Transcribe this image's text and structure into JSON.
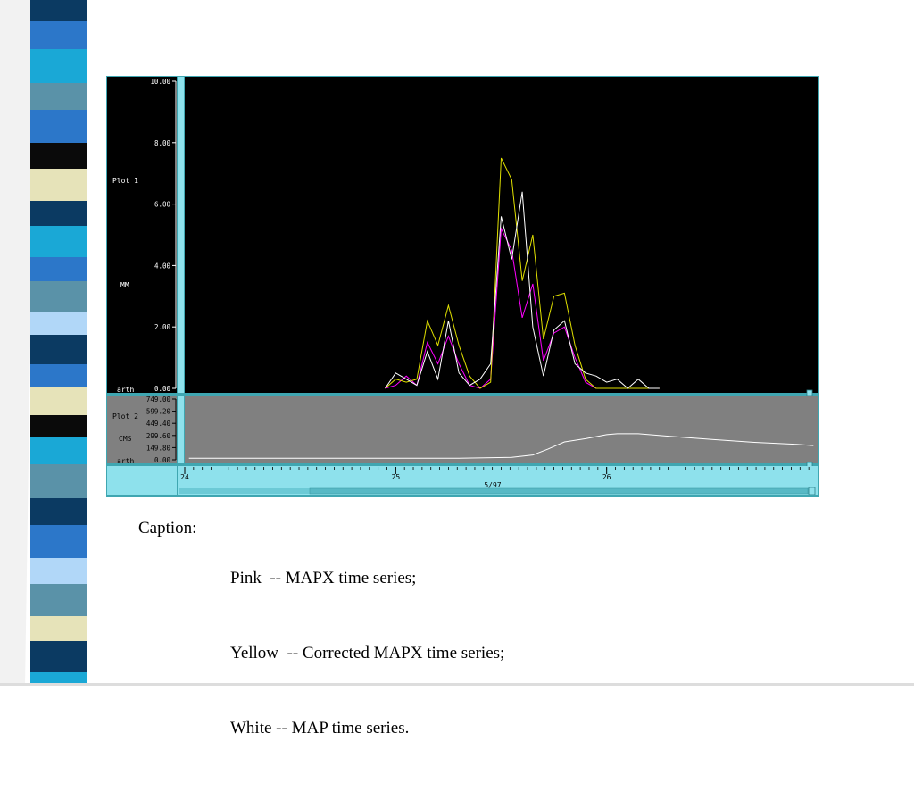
{
  "chart_data": [
    {
      "type": "line",
      "panel_label": "Plot 1",
      "ylabel": "MM",
      "baseline_label": "arth",
      "ylim": [
        0,
        10
      ],
      "yticks": [
        "10.00",
        "8.00",
        "6.00",
        "4.00",
        "2.00",
        "0.00"
      ],
      "ytick_values": [
        10,
        8,
        6,
        4,
        2,
        0
      ],
      "xlim": [
        24,
        27
      ],
      "grid": false,
      "series": [
        {
          "name": "",
          "color": "#ff00ff",
          "x": [
            24.95,
            25.0,
            25.05,
            25.1,
            25.15,
            25.2,
            25.25,
            25.3,
            25.35,
            25.4,
            25.45,
            25.5,
            25.55,
            25.6,
            25.65,
            25.7,
            25.75,
            25.8,
            25.85,
            25.9,
            25.95,
            26.0,
            26.05,
            26.1,
            26.15,
            26.2,
            26.25
          ],
          "y": [
            0,
            0.1,
            0.4,
            0.1,
            1.5,
            0.8,
            1.7,
            0.8,
            0.1,
            0,
            0.3,
            5.2,
            4.5,
            2.3,
            3.4,
            0.9,
            1.8,
            2.0,
            1.0,
            0.2,
            0,
            0,
            0,
            0,
            0,
            0,
            0
          ]
        },
        {
          "name": "",
          "color": "#e0e000",
          "x": [
            24.95,
            25.0,
            25.05,
            25.1,
            25.15,
            25.2,
            25.25,
            25.3,
            25.35,
            25.4,
            25.45,
            25.5,
            25.55,
            25.6,
            25.65,
            25.7,
            25.75,
            25.8,
            25.85,
            25.9,
            25.95,
            26.0,
            26.05,
            26.1,
            26.15,
            26.2,
            26.25
          ],
          "y": [
            0,
            0.3,
            0.2,
            0.3,
            2.2,
            1.4,
            2.7,
            1.4,
            0.4,
            0,
            0.2,
            7.5,
            6.8,
            3.5,
            5.0,
            1.6,
            3.0,
            3.1,
            1.4,
            0.3,
            0,
            0,
            0,
            0,
            0,
            0,
            0
          ]
        },
        {
          "name": "",
          "color": "#ffffff",
          "x": [
            24.95,
            25.0,
            25.05,
            25.1,
            25.15,
            25.2,
            25.25,
            25.3,
            25.35,
            25.4,
            25.45,
            25.5,
            25.55,
            25.6,
            25.65,
            25.7,
            25.75,
            25.8,
            25.85,
            25.9,
            25.95,
            26.0,
            26.05,
            26.1,
            26.15,
            26.2,
            26.25
          ],
          "y": [
            0,
            0.5,
            0.3,
            0.1,
            1.2,
            0.3,
            2.2,
            0.5,
            0.1,
            0.3,
            0.8,
            5.6,
            4.2,
            6.4,
            2.0,
            0.4,
            1.9,
            2.2,
            0.8,
            0.5,
            0.4,
            0.2,
            0.3,
            0,
            0.3,
            0,
            0
          ]
        }
      ]
    },
    {
      "type": "line",
      "panel_label": "Plot 2",
      "ylabel": "CMS",
      "baseline_label": "arth",
      "ylim": [
        0,
        749
      ],
      "yticks": [
        "749.00",
        "599.20",
        "449.40",
        "299.60",
        "149.80",
        "0.00"
      ],
      "ytick_values": [
        749,
        599.2,
        449.4,
        299.6,
        149.8,
        0
      ],
      "xlim": [
        24,
        27
      ],
      "grid": false,
      "series": [
        {
          "name": "",
          "color": "#ffffff",
          "x": [
            24.02,
            24.5,
            25.0,
            25.3,
            25.55,
            25.65,
            25.72,
            25.8,
            25.9,
            26.0,
            26.05,
            26.15,
            26.3,
            26.5,
            26.7,
            26.9,
            26.98
          ],
          "y": [
            20,
            20,
            20,
            20,
            30,
            60,
            130,
            220,
            260,
            310,
            320,
            320,
            290,
            250,
            215,
            190,
            175
          ]
        }
      ]
    }
  ],
  "x_axis": {
    "ticks": [
      "24",
      "25",
      "26"
    ],
    "tick_values": [
      24,
      25,
      26
    ],
    "minor_per_day": 24,
    "date_label": "5/97"
  },
  "caption": {
    "label": "Caption:",
    "lines": [
      "Pink  -- MAPX time series;",
      "Yellow  -- Corrected MAPX time series;",
      "White -- MAP time series."
    ]
  },
  "colors": {
    "frame": "#3fa6b1",
    "plot1_bg": "#000000",
    "plot2_bg": "#808080",
    "axis_bar": "#8ee1ec",
    "stripe": [
      "#2c77c9",
      "#0b3a62",
      "#5a92a8",
      "#1aa8d6",
      "#e6e3b9",
      "#b1d7f8",
      "#3a6fb8",
      "#0a0a0a"
    ]
  }
}
